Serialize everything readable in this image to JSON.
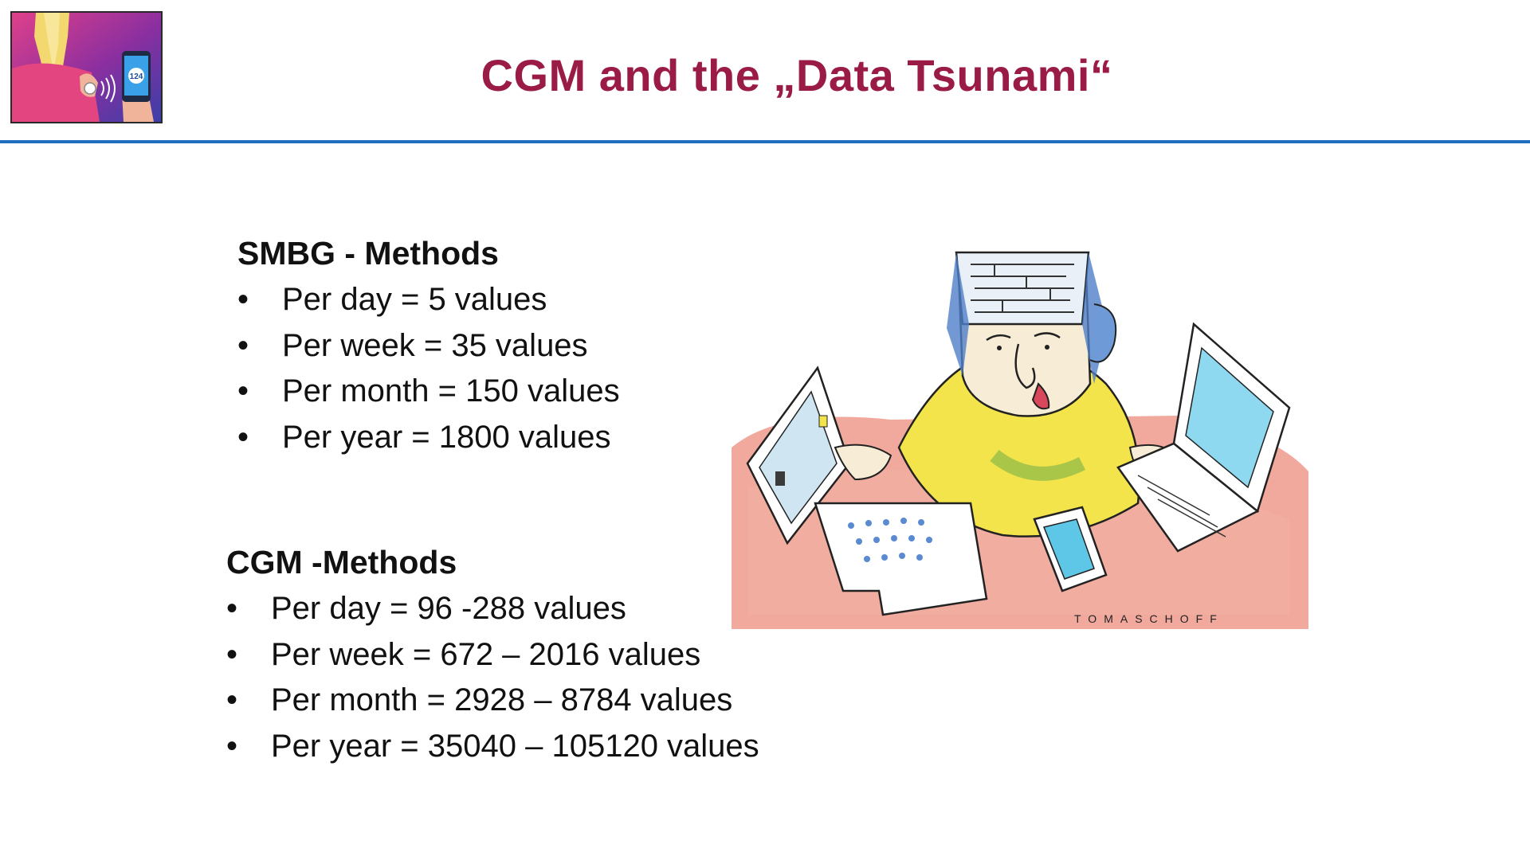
{
  "slide": {
    "title": "CGM and the „Data Tsunami“",
    "logo": {
      "icon": "cgm-sensor-smartphone-logo",
      "phone_reading": "124",
      "colors": {
        "magenta": "#c8307a",
        "purple": "#5a2a9a",
        "blue": "#3a72c8"
      }
    },
    "accent_color": "#9b1b47",
    "rule_color": "#1f6fbe"
  },
  "smbg": {
    "heading": "SMBG - Methods",
    "items": [
      "Per day = 5 values",
      "Per week = 35 values",
      "Per month = 150 values",
      "Per year = 1800 values"
    ]
  },
  "cgm": {
    "heading": "CGM -Methods",
    "items": [
      "Per day = 96 -288 values",
      "Per week = 672 – 2016 values",
      "Per month = 2928 – 8784 values",
      "Per year = 35040 – 105120 values"
    ]
  },
  "illustration": {
    "icon": "overwhelmed-man-with-computers-cartoon",
    "signature": "TOMASCHOFF"
  }
}
